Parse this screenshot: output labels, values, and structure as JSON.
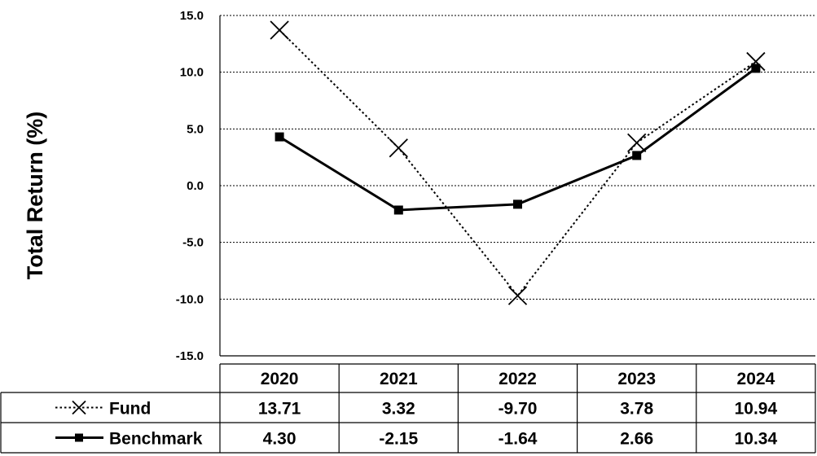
{
  "chart_data": {
    "type": "line",
    "title": "",
    "xlabel": "",
    "ylabel": "Total Return (%)",
    "categories": [
      "2020",
      "2021",
      "2022",
      "2023",
      "2024"
    ],
    "ylim": [
      -15,
      15
    ],
    "yticks": [
      "15.0",
      "10.0",
      "5.0",
      "0.0",
      "-5.0",
      "-10.0",
      "-15.0"
    ],
    "ytick_values": [
      15,
      10,
      5,
      0,
      -5,
      -10,
      -15
    ],
    "grid": true,
    "legend_placement": "data-table-left",
    "series": [
      {
        "name": "Fund",
        "values": [
          13.71,
          3.32,
          -9.7,
          3.78,
          10.94
        ],
        "labels": [
          "13.71",
          "3.32",
          "-9.70",
          "3.78",
          "10.94"
        ],
        "line_style": "dotted",
        "marker": "x",
        "color": "#000000"
      },
      {
        "name": "Benchmark",
        "values": [
          4.3,
          -2.15,
          -1.64,
          2.66,
          10.34
        ],
        "labels": [
          "4.30",
          "-2.15",
          "-1.64",
          "2.66",
          "10.34"
        ],
        "line_style": "solid",
        "marker": "square",
        "color": "#000000"
      }
    ]
  }
}
